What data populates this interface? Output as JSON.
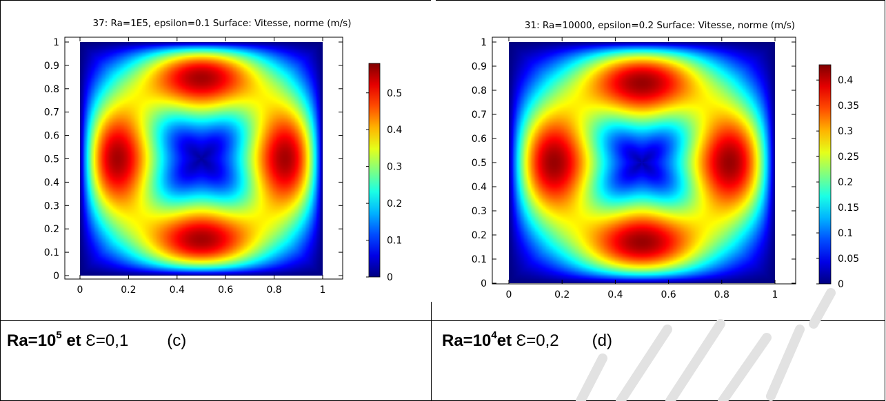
{
  "chart_data": [
    {
      "type": "heatmap",
      "title": "37: Ra=1E5, epsilon=0.1   Surface: Vitesse, norme (m/s)",
      "xlim": [
        0,
        1
      ],
      "ylim": [
        0,
        1
      ],
      "x_ticks": [
        "0",
        "0.2",
        "0.4",
        "0.6",
        "0.8",
        "1"
      ],
      "y_ticks": [
        "0",
        "0.1",
        "0.2",
        "0.3",
        "0.4",
        "0.5",
        "0.6",
        "0.7",
        "0.8",
        "0.9",
        "1"
      ],
      "colorbar": {
        "range": [
          0,
          0.58
        ],
        "ticks": [
          "0",
          "0.1",
          "0.2",
          "0.3",
          "0.4",
          "0.5"
        ]
      },
      "field": {
        "ring_radius": 0.36,
        "ring_width": 0.2,
        "lobes": [
          0.0,
          1.5708,
          3.1416,
          4.7124
        ]
      }
    },
    {
      "type": "heatmap",
      "title": "31: Ra=10000, epsilon=0.2   Surface: Vitesse, norme (m/s)",
      "xlim": [
        0,
        1
      ],
      "ylim": [
        0,
        1
      ],
      "x_ticks": [
        "0",
        "0.2",
        "0.4",
        "0.6",
        "0.8",
        "1"
      ],
      "y_ticks": [
        "0",
        "0.1",
        "0.2",
        "0.3",
        "0.4",
        "0.5",
        "0.6",
        "0.7",
        "0.8",
        "0.9",
        "1"
      ],
      "colorbar": {
        "range": [
          0,
          0.43
        ],
        "ticks": [
          "0",
          "0.05",
          "0.1",
          "0.15",
          "0.2",
          "0.25",
          "0.3",
          "0.35",
          "0.4"
        ]
      },
      "field": {
        "ring_radius": 0.34,
        "ring_width": 0.2,
        "lobes": [
          0.0,
          1.5708,
          3.1416,
          4.7124
        ]
      }
    }
  ],
  "captions": [
    {
      "ra": "Ra=10",
      "exp": "5",
      "et": " et ",
      "eps": "Ɛ=0,1",
      "tag": "(c)"
    },
    {
      "ra": "Ra=10",
      "exp": "4",
      "et": "et ",
      "eps": "Ɛ=0,2",
      "tag": "(d)"
    }
  ],
  "colors": {
    "border": "#000000",
    "watermark": "#dcdcdc"
  }
}
